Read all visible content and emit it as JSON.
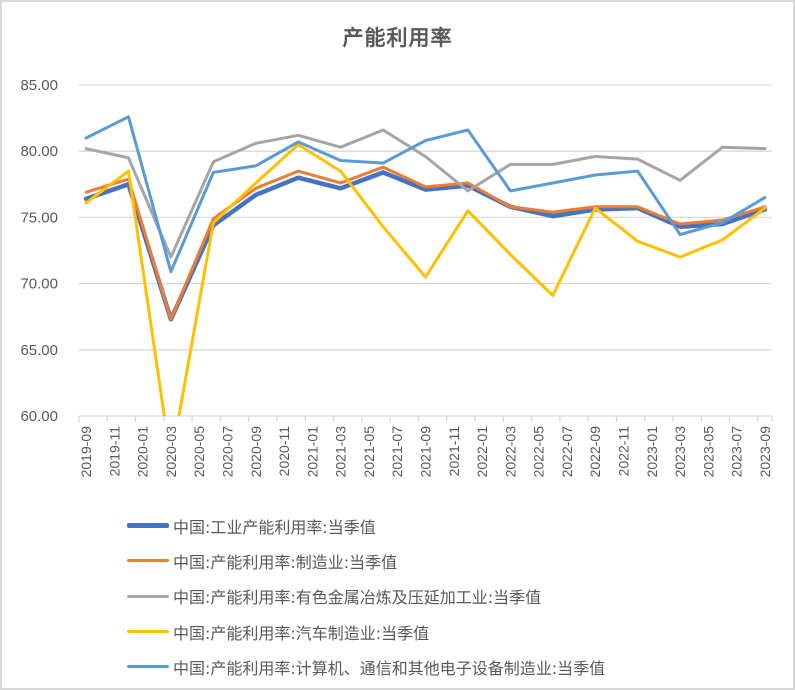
{
  "chart_data": {
    "type": "line",
    "title": "产能利用率",
    "xlabel": "",
    "ylabel": "",
    "ylim": [
      60,
      85
    ],
    "yticks": [
      "60.00",
      "65.00",
      "70.00",
      "75.00",
      "80.00",
      "85.00"
    ],
    "grid": true,
    "legend_position": "bottom",
    "x_tick_labels": [
      "2019-09",
      "2019-11",
      "2020-01",
      "2020-03",
      "2020-05",
      "2020-07",
      "2020-09",
      "2020-11",
      "2021-01",
      "2021-03",
      "2021-05",
      "2021-07",
      "2021-09",
      "2021-11",
      "2022-01",
      "2022-03",
      "2022-05",
      "2022-07",
      "2022-09",
      "2022-11",
      "2023-01",
      "2023-03",
      "2023-05",
      "2023-07",
      "2023-09"
    ],
    "x": [
      "2019-09",
      "2019-12",
      "2020-03",
      "2020-06",
      "2020-09",
      "2020-12",
      "2021-03",
      "2021-06",
      "2021-09",
      "2021-12",
      "2022-03",
      "2022-06",
      "2022-09",
      "2022-12",
      "2023-03",
      "2023-06",
      "2023-09"
    ],
    "series": [
      {
        "name": "中国:工业产能利用率:当季值",
        "color": "#4472C4",
        "width": 4.5,
        "values": [
          76.4,
          77.5,
          67.3,
          74.4,
          76.7,
          78.0,
          77.2,
          78.4,
          77.1,
          77.4,
          75.8,
          75.1,
          75.6,
          75.7,
          74.3,
          74.5,
          75.6
        ]
      },
      {
        "name": "中国:产能利用率:制造业:当季值",
        "color": "#ED7D31",
        "width": 3,
        "values": [
          76.9,
          77.9,
          67.3,
          74.9,
          77.2,
          78.5,
          77.6,
          78.8,
          77.3,
          77.6,
          75.8,
          75.4,
          75.8,
          75.8,
          74.5,
          74.8,
          75.8
        ]
      },
      {
        "name": "中国:产能利用率:有色金属冶炼及压延加工业:当季值",
        "color": "#A5A5A5",
        "width": 3,
        "values": [
          80.2,
          79.5,
          72.0,
          79.2,
          80.6,
          81.2,
          80.3,
          81.6,
          79.6,
          77.0,
          79.0,
          79.0,
          79.6,
          79.4,
          77.8,
          80.3,
          80.2
        ]
      },
      {
        "name": "中国:产能利用率:汽车制造业:当季值",
        "color": "#FFC000",
        "width": 3,
        "values": [
          76.1,
          78.5,
          56.6,
          74.6,
          77.6,
          80.5,
          78.5,
          74.3,
          70.5,
          75.5,
          72.2,
          69.1,
          75.7,
          73.2,
          72.0,
          73.3,
          75.7
        ]
      },
      {
        "name": "中国:产能利用率:计算机、通信和其他电子设备制造业:当季值",
        "color": "#5B9BD5",
        "width": 3,
        "values": [
          81.0,
          82.6,
          70.9,
          78.4,
          78.9,
          80.7,
          79.3,
          79.1,
          80.8,
          81.6,
          77.0,
          77.6,
          78.2,
          78.5,
          73.7,
          74.6,
          76.5
        ]
      }
    ]
  },
  "legend": {
    "items": [
      {
        "label": "中国:工业产能利用率:当季值",
        "color": "#4472C4"
      },
      {
        "label": "中国:产能利用率:制造业:当季值",
        "color": "#ED7D31"
      },
      {
        "label": "中国:产能利用率:有色金属冶炼及压延加工业:当季值",
        "color": "#A5A5A5"
      },
      {
        "label": "中国:产能利用率:汽车制造业:当季值",
        "color": "#FFC000"
      },
      {
        "label": "中国:产能利用率:计算机、通信和其他电子设备制造业:当季值",
        "color": "#5B9BD5"
      }
    ]
  }
}
